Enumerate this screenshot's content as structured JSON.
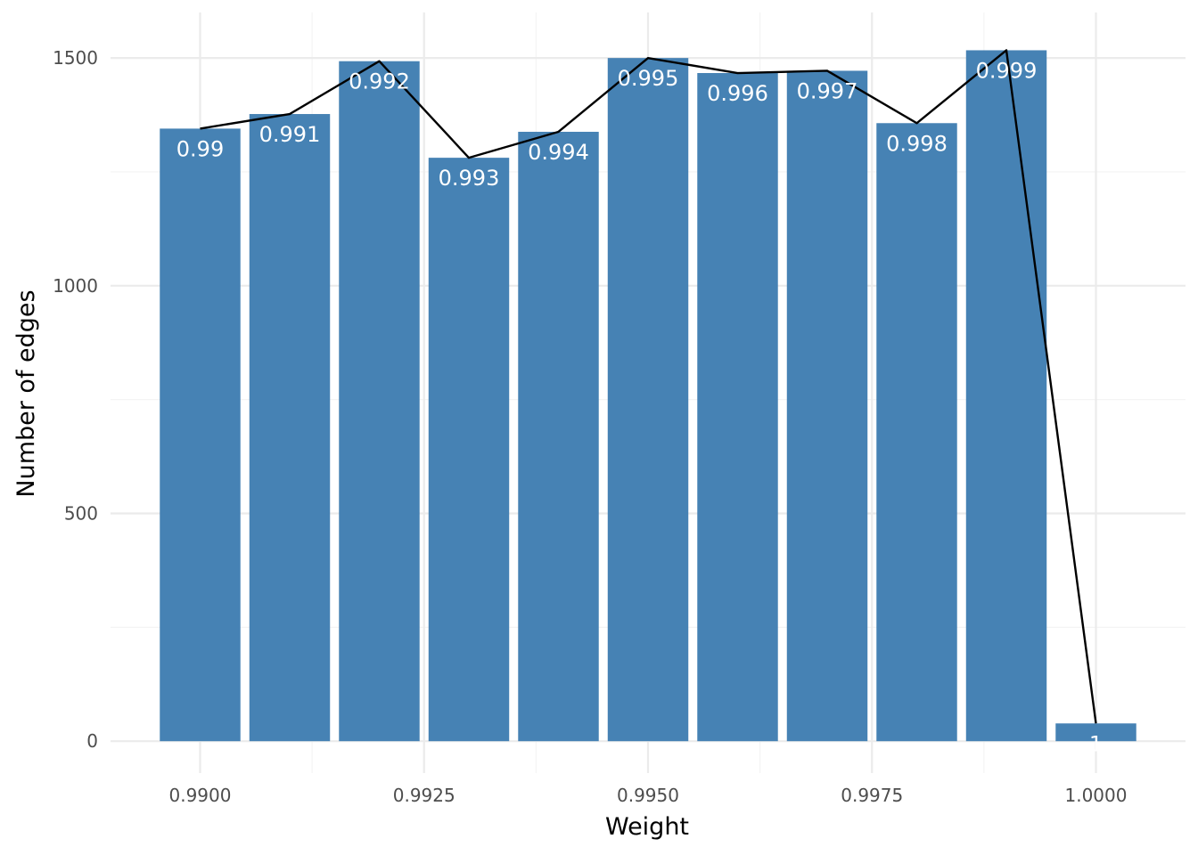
{
  "chart_data": {
    "type": "bar",
    "xlabel": "Weight",
    "ylabel": "Number of edges",
    "x": [
      0.99,
      0.991,
      0.992,
      0.993,
      0.994,
      0.995,
      0.996,
      0.997,
      0.998,
      0.999,
      1.0
    ],
    "values": [
      1345,
      1377,
      1493,
      1281,
      1338,
      1500,
      1467,
      1472,
      1357,
      1517,
      39
    ],
    "bar_labels": [
      "0.99",
      "0.991",
      "0.992",
      "0.993",
      "0.994",
      "0.995",
      "0.996",
      "0.997",
      "0.998",
      "0.999",
      "1"
    ],
    "overlay_line": true,
    "xlim": [
      0.989,
      1.001
    ],
    "ylim": [
      -70,
      1600
    ],
    "x_ticks": [
      0.99,
      0.9925,
      0.995,
      0.9975,
      1.0
    ],
    "x_tick_labels": [
      "0.9900",
      "0.9925",
      "0.9950",
      "0.9975",
      "1.0000"
    ],
    "y_ticks": [
      0,
      500,
      1000,
      1500
    ],
    "y_tick_labels": [
      "0",
      "500",
      "1000",
      "1500"
    ],
    "grid": true,
    "colors": {
      "bar": "#4682b4",
      "line": "#000000",
      "label": "#ffffff"
    }
  }
}
